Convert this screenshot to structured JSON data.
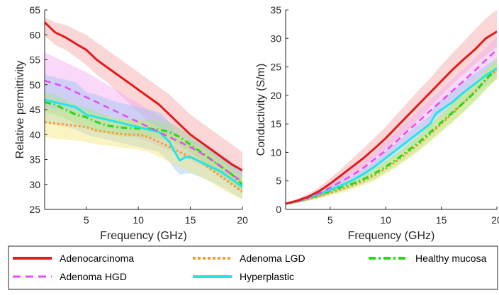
{
  "chart_data": [
    {
      "type": "line",
      "xlabel": "Frequency (GHz)",
      "ylabel": "Relative permittivity",
      "xlim": [
        1,
        20
      ],
      "ylim": [
        25,
        65
      ],
      "xticks": [
        5,
        10,
        15,
        20
      ],
      "yticks": [
        25,
        30,
        35,
        40,
        45,
        50,
        55,
        60,
        65
      ],
      "grid": false,
      "series": [
        {
          "name": "Adenocarcinoma",
          "x": [
            1,
            2,
            3,
            4,
            5,
            6,
            7,
            8,
            9,
            10,
            11,
            12,
            13,
            14,
            15,
            16,
            17,
            18,
            19,
            20
          ],
          "y": [
            62.5,
            60.5,
            59.5,
            58.2,
            57,
            55,
            53.5,
            52,
            50.5,
            49,
            47.5,
            46,
            44,
            42,
            40,
            38.5,
            37,
            35.5,
            34,
            32.8
          ],
          "lower": [
            59.8,
            58,
            57,
            55.5,
            54,
            52,
            50.5,
            48.5,
            46.5,
            44.5,
            42.5,
            41,
            39.5,
            38,
            36.5,
            35,
            33.5,
            32,
            30.5,
            29
          ],
          "upper": [
            63.5,
            62.5,
            62,
            61,
            60,
            58.5,
            57,
            55.5,
            54,
            52.5,
            51,
            49.5,
            48,
            46,
            44,
            42.5,
            41,
            39.5,
            38,
            36.5
          ]
        },
        {
          "name": "Adenoma LGD",
          "x": [
            1,
            2,
            3,
            4,
            5,
            6,
            7,
            8,
            9,
            10,
            11,
            12,
            13,
            14,
            15,
            16,
            17,
            18,
            19,
            20
          ],
          "y": [
            42.5,
            42.2,
            42,
            41.8,
            41.5,
            40.8,
            40.5,
            40.2,
            40,
            40,
            39.5,
            38.5,
            37.5,
            36.5,
            35.5,
            34.5,
            33,
            31.5,
            30,
            28.5
          ],
          "lower": [
            39.5,
            39.2,
            39,
            38.8,
            38.5,
            38,
            37.8,
            37.5,
            37.2,
            37,
            36.5,
            35.5,
            34.5,
            33.5,
            32.5,
            31.5,
            30.5,
            29,
            28,
            27
          ],
          "upper": [
            45.5,
            45.2,
            45,
            44.8,
            44.5,
            44,
            43.5,
            43.2,
            43,
            43,
            42.5,
            41.5,
            40.5,
            39.5,
            38.5,
            37.5,
            36,
            34.5,
            33,
            31.5
          ]
        },
        {
          "name": "Healthy mucosa",
          "x": [
            1,
            2,
            3,
            4,
            5,
            6,
            7,
            8,
            9,
            10,
            11,
            12,
            13,
            14,
            15,
            16,
            17,
            18,
            19,
            20
          ],
          "y": [
            46.5,
            46,
            45,
            44,
            43.5,
            42.5,
            41.8,
            41.5,
            41.3,
            41.2,
            41.2,
            41,
            40.5,
            39.5,
            38,
            36.5,
            35,
            33.5,
            32,
            30
          ],
          "lower": [
            44.5,
            44,
            43.2,
            42.2,
            41.5,
            40.8,
            40.2,
            39.8,
            39.5,
            39.5,
            39.5,
            39.2,
            38.8,
            37.8,
            36.3,
            34.8,
            33.2,
            31.8,
            30.2,
            28.5
          ],
          "upper": [
            48.5,
            48,
            47,
            46,
            45.5,
            44.5,
            43.8,
            43.2,
            43,
            43,
            43,
            42.8,
            42.3,
            41.3,
            39.8,
            38.3,
            36.8,
            35.3,
            33.8,
            31.8
          ]
        },
        {
          "name": "Adenoma HGD",
          "x": [
            1,
            2,
            3,
            4,
            5,
            6,
            7,
            8,
            9,
            10,
            11,
            12,
            13,
            14,
            15,
            16,
            17,
            18,
            19,
            20
          ],
          "y": [
            50.8,
            50.2,
            49.5,
            48.5,
            47.5,
            46.5,
            45.5,
            44.5,
            43.5,
            42.5,
            41.5,
            40.5,
            39.5,
            38.5,
            37.5,
            36.3,
            35,
            33.5,
            32,
            30.5
          ],
          "lower": [
            45.5,
            45,
            44.5,
            43.8,
            43,
            42.2,
            41.5,
            40.8,
            40,
            39.2,
            38.5,
            37.7,
            36.8,
            35.8,
            34.8,
            33.8,
            32.8,
            31.5,
            30,
            28.5
          ],
          "upper": [
            56.5,
            55.5,
            54.5,
            53.5,
            52.5,
            51.3,
            50,
            48.8,
            47.5,
            46.3,
            45,
            43.8,
            42.5,
            41.3,
            40,
            38.8,
            37.5,
            36,
            34.5,
            33
          ]
        },
        {
          "name": "Hyperplastic",
          "x": [
            1,
            2,
            3,
            4,
            5,
            6,
            7,
            8,
            9,
            10,
            11,
            12,
            13,
            13.5,
            14,
            14.5,
            15,
            16,
            17,
            18,
            19,
            20
          ],
          "y": [
            47,
            46.5,
            46,
            45.5,
            44,
            43.5,
            43,
            42.5,
            42,
            41.5,
            41,
            40.5,
            38.5,
            36.5,
            34.8,
            35.5,
            35.5,
            34.5,
            33.5,
            32.5,
            31,
            29.5
          ],
          "lower": [
            42.5,
            42,
            41.5,
            41,
            40,
            39.5,
            39,
            38.5,
            38,
            37.5,
            37,
            36.5,
            34.5,
            33,
            32,
            32.2,
            32.2,
            31.5,
            30.5,
            29.5,
            28.3,
            27
          ],
          "upper": [
            52,
            51.5,
            51,
            50.5,
            48.5,
            48,
            47.2,
            46.5,
            46,
            45.5,
            45,
            44.5,
            42.5,
            40.5,
            38.5,
            39,
            39,
            38,
            37,
            36,
            34.5,
            33
          ]
        }
      ]
    },
    {
      "type": "line",
      "xlabel": "Frequency (GHz)",
      "ylabel": "Conductivity (S/m)",
      "xlim": [
        1,
        20
      ],
      "ylim": [
        0,
        35
      ],
      "xticks": [
        5,
        10,
        15,
        20
      ],
      "yticks": [
        0,
        5,
        10,
        15,
        20,
        25,
        30,
        35
      ],
      "grid": false,
      "series": [
        {
          "name": "Adenocarcinoma",
          "x": [
            1,
            2,
            3,
            4,
            5,
            6,
            7,
            8,
            9,
            10,
            11,
            12,
            13,
            14,
            15,
            16,
            17,
            18,
            19,
            20
          ],
          "y": [
            1,
            1.5,
            2.2,
            3.2,
            4.5,
            6,
            7.5,
            9,
            10.7,
            12.5,
            14.5,
            16.5,
            18.5,
            20.5,
            22.5,
            24.5,
            26.3,
            28,
            30,
            31.2
          ],
          "lower": [
            0.8,
            1.3,
            1.8,
            2.6,
            3.6,
            4.8,
            6.1,
            7.5,
            9,
            10.5,
            12.3,
            14,
            16,
            18,
            20,
            22,
            23.7,
            25.4,
            27,
            28.5
          ],
          "upper": [
            1.2,
            1.8,
            2.7,
            3.9,
            5.4,
            7.1,
            8.9,
            10.7,
            12.6,
            14.5,
            16.7,
            18.8,
            21,
            23,
            25.3,
            27.4,
            29.4,
            31.5,
            33.5,
            35
          ]
        },
        {
          "name": "Adenoma LGD",
          "x": [
            1,
            2,
            3,
            4,
            5,
            6,
            7,
            8,
            9,
            10,
            11,
            12,
            13,
            14,
            15,
            16,
            17,
            18,
            19,
            20
          ],
          "y": [
            1,
            1.3,
            1.8,
            2.3,
            2.9,
            3.5,
            4.2,
            5,
            6,
            7.2,
            8.5,
            10,
            11.5,
            13.2,
            15,
            16.8,
            18.7,
            20.7,
            22.7,
            24.5
          ],
          "lower": [
            0.8,
            1.1,
            1.5,
            1.9,
            2.4,
            2.9,
            3.5,
            4.2,
            5,
            6.2,
            7.4,
            8.8,
            10.2,
            11.8,
            13.5,
            15.2,
            17,
            19,
            21,
            22.8
          ],
          "upper": [
            1.2,
            1.5,
            2.1,
            2.7,
            3.4,
            4.1,
            4.9,
            5.8,
            7,
            8.3,
            9.7,
            11.3,
            12.9,
            14.7,
            16.5,
            18.4,
            20.4,
            22.4,
            24.4,
            26.3
          ]
        },
        {
          "name": "Healthy mucosa",
          "x": [
            1,
            2,
            3,
            4,
            5,
            6,
            7,
            8,
            9,
            10,
            11,
            12,
            13,
            14,
            15,
            16,
            17,
            18,
            19,
            20
          ],
          "y": [
            1,
            1.4,
            1.9,
            2.5,
            3.2,
            3.9,
            4.5,
            5.3,
            6.3,
            7.5,
            8.8,
            10.3,
            11.8,
            13.5,
            15.3,
            17,
            18.7,
            20.5,
            22.8,
            24.8
          ],
          "lower": [
            0.8,
            1.1,
            1.5,
            2,
            2.6,
            3.2,
            3.8,
            4.5,
            5.3,
            6.5,
            7.7,
            9.1,
            10.5,
            12.1,
            13.8,
            15.4,
            17.1,
            18.9,
            21,
            23
          ],
          "upper": [
            1.2,
            1.7,
            2.3,
            3,
            3.8,
            4.6,
            5.3,
            6.1,
            7.3,
            8.5,
            9.9,
            11.5,
            13.1,
            14.9,
            16.8,
            18.6,
            20.3,
            22.1,
            24.5,
            26.5
          ]
        },
        {
          "name": "Adenoma HGD",
          "x": [
            1,
            2,
            3,
            4,
            5,
            6,
            7,
            8,
            9,
            10,
            11,
            12,
            13,
            14,
            15,
            16,
            17,
            18,
            19,
            20
          ],
          "y": [
            1,
            1.4,
            2,
            2.8,
            3.8,
            4.9,
            6,
            7.3,
            8.8,
            10.3,
            12,
            13.8,
            15.5,
            17.3,
            19,
            20.8,
            22.5,
            24.3,
            26.2,
            28
          ],
          "lower": [
            0.8,
            1.2,
            1.7,
            2.3,
            3.1,
            4,
            5,
            6.2,
            7.5,
            8.8,
            10.3,
            12,
            13.6,
            15.3,
            17,
            18.7,
            20.4,
            22.1,
            24,
            25.7
          ],
          "upper": [
            1.2,
            1.6,
            2.3,
            3.3,
            4.5,
            5.8,
            7.1,
            8.5,
            10.1,
            11.8,
            13.7,
            15.6,
            17.4,
            19.3,
            21,
            22.9,
            24.6,
            26.5,
            28.4,
            30.3
          ]
        },
        {
          "name": "Hyperplastic",
          "x": [
            1,
            2,
            3,
            4,
            5,
            6,
            7,
            8,
            9,
            10,
            11,
            12,
            13,
            14,
            14.5,
            15,
            16,
            17,
            18,
            19,
            20
          ],
          "y": [
            1,
            1.4,
            2,
            2.7,
            3.4,
            4.2,
            5.1,
            6.2,
            7.5,
            9,
            10.5,
            12,
            13.5,
            15,
            16.8,
            17.5,
            18.8,
            20.5,
            22,
            23.5,
            24.8
          ],
          "lower": [
            0.8,
            1.1,
            1.6,
            2.2,
            2.8,
            3.5,
            4.3,
            5.3,
            6.5,
            7.8,
            9.2,
            10.6,
            12,
            13.5,
            15,
            15.8,
            17,
            18.7,
            20.2,
            21.7,
            23
          ],
          "upper": [
            1.2,
            1.7,
            2.4,
            3.2,
            4,
            4.9,
            5.9,
            7.1,
            8.5,
            10.2,
            11.8,
            13.4,
            15,
            16.5,
            18.6,
            19.2,
            20.6,
            22.3,
            23.8,
            25.3,
            26.6
          ]
        }
      ]
    }
  ],
  "legend": [
    {
      "name": "Adenocarcinoma",
      "color": "#e31a1c",
      "style": "solid"
    },
    {
      "name": "Adenoma LGD",
      "color": "#f39c32",
      "style": "dotted"
    },
    {
      "name": "Healthy mucosa",
      "color": "#27d81a",
      "style": "dashdot"
    },
    {
      "name": "Adenoma HGD",
      "color": "#e64cf0",
      "style": "dashed"
    },
    {
      "name": "Hyperplastic",
      "color": "#22e6e6",
      "style": "solid"
    }
  ],
  "band_colors": {
    "Adenocarcinoma": "#f4a3a3",
    "Adenoma LGD": "#f3e678",
    "Healthy mucosa": "#a6e58a",
    "Adenoma HGD": "#f2a9f5",
    "Hyperplastic": "#9cc6f2"
  }
}
